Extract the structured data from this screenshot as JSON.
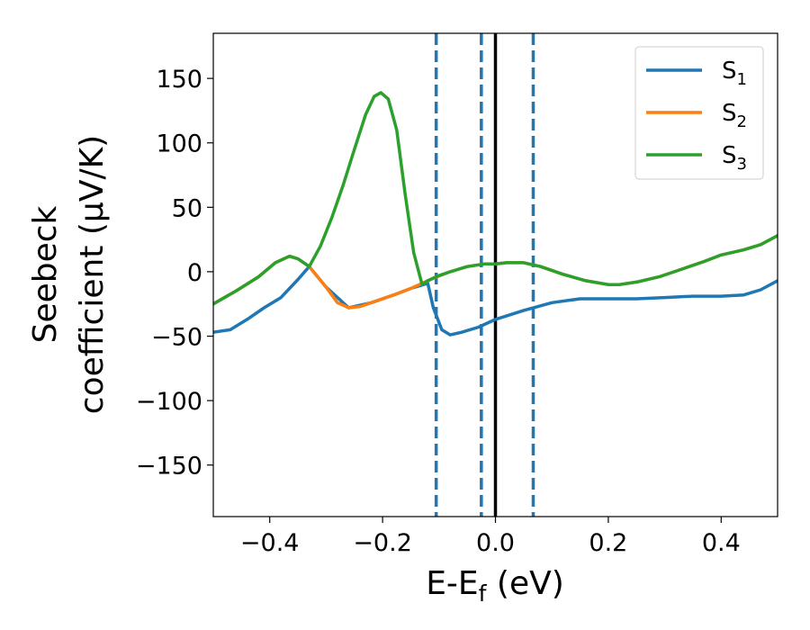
{
  "chart_data": {
    "type": "line",
    "xlabel": {
      "main": "E-E",
      "sub": "f",
      "unit": " (eV)"
    },
    "ylabel": {
      "line1": "Seebeck",
      "line2": "coefficient  (μV/K)"
    },
    "xlim": [
      -0.5,
      0.5
    ],
    "ylim": [
      -190,
      185
    ],
    "xticks": [
      {
        "v": -0.4,
        "label": "−0.4"
      },
      {
        "v": -0.2,
        "label": "−0.2"
      },
      {
        "v": 0.0,
        "label": "0.0"
      },
      {
        "v": 0.2,
        "label": "0.2"
      },
      {
        "v": 0.4,
        "label": "0.4"
      }
    ],
    "yticks": [
      {
        "v": 150,
        "label": "150"
      },
      {
        "v": 100,
        "label": "100"
      },
      {
        "v": 50,
        "label": "50"
      },
      {
        "v": 0,
        "label": "0"
      },
      {
        "v": -50,
        "label": "−50"
      },
      {
        "v": -100,
        "label": "−100"
      },
      {
        "v": -150,
        "label": "−150"
      }
    ],
    "grid": false,
    "legend_position": "top-right",
    "vlines": [
      {
        "x": -0.105,
        "style": "dashed",
        "color": "#1f77b4"
      },
      {
        "x": -0.025,
        "style": "dashed",
        "color": "#1f77b4"
      },
      {
        "x": 0.0,
        "style": "solid",
        "color": "#000000"
      },
      {
        "x": 0.067,
        "style": "dashed",
        "color": "#1f77b4"
      }
    ],
    "series": [
      {
        "name": "S",
        "sub": "1",
        "color": "#1f77b4",
        "points": [
          [
            -0.5,
            -47
          ],
          [
            -0.47,
            -45
          ],
          [
            -0.44,
            -37
          ],
          [
            -0.41,
            -28
          ],
          [
            -0.38,
            -20
          ],
          [
            -0.35,
            -6
          ],
          [
            -0.33,
            4
          ],
          [
            -0.3,
            -12
          ],
          [
            -0.26,
            -28
          ],
          [
            -0.22,
            -24
          ],
          [
            -0.18,
            -18
          ],
          [
            -0.15,
            -13
          ],
          [
            -0.12,
            -9
          ],
          [
            -0.11,
            -28
          ],
          [
            -0.095,
            -45
          ],
          [
            -0.08,
            -49
          ],
          [
            -0.06,
            -47
          ],
          [
            -0.03,
            -43
          ],
          [
            0.0,
            -37
          ],
          [
            0.05,
            -30
          ],
          [
            0.1,
            -24
          ],
          [
            0.15,
            -21
          ],
          [
            0.2,
            -21
          ],
          [
            0.25,
            -21
          ],
          [
            0.3,
            -20
          ],
          [
            0.35,
            -19
          ],
          [
            0.4,
            -19
          ],
          [
            0.44,
            -18
          ],
          [
            0.47,
            -14
          ],
          [
            0.5,
            -7
          ]
        ]
      },
      {
        "name": "S",
        "sub": "2",
        "color": "#ff7f0e",
        "points": [
          [
            -0.5,
            -25
          ],
          [
            -0.46,
            -15
          ],
          [
            -0.42,
            -4
          ],
          [
            -0.39,
            7
          ],
          [
            -0.365,
            12
          ],
          [
            -0.35,
            10
          ],
          [
            -0.33,
            4
          ],
          [
            -0.3,
            -12
          ],
          [
            -0.28,
            -24
          ],
          [
            -0.26,
            -28
          ],
          [
            -0.24,
            -27
          ],
          [
            -0.22,
            -24
          ],
          [
            -0.18,
            -18
          ],
          [
            -0.15,
            -13
          ],
          [
            -0.13,
            -9
          ],
          [
            -0.11,
            -5
          ],
          [
            -0.08,
            0
          ],
          [
            -0.05,
            4
          ],
          [
            -0.02,
            6
          ],
          [
            0.0,
            6
          ],
          [
            0.02,
            7
          ],
          [
            0.05,
            7
          ],
          [
            0.08,
            4
          ],
          [
            0.12,
            -2
          ],
          [
            0.16,
            -7
          ],
          [
            0.2,
            -10
          ],
          [
            0.22,
            -10
          ],
          [
            0.25,
            -8
          ],
          [
            0.29,
            -4
          ],
          [
            0.33,
            2
          ],
          [
            0.37,
            8
          ],
          [
            0.4,
            13
          ],
          [
            0.44,
            17
          ],
          [
            0.47,
            21
          ],
          [
            0.5,
            28
          ]
        ]
      },
      {
        "name": "S",
        "sub": "3",
        "color": "#2ca02c",
        "points": [
          [
            -0.5,
            -25
          ],
          [
            -0.46,
            -15
          ],
          [
            -0.42,
            -4
          ],
          [
            -0.39,
            7
          ],
          [
            -0.365,
            12
          ],
          [
            -0.35,
            10
          ],
          [
            -0.33,
            4
          ],
          [
            -0.31,
            20
          ],
          [
            -0.29,
            42
          ],
          [
            -0.27,
            67
          ],
          [
            -0.25,
            95
          ],
          [
            -0.23,
            122
          ],
          [
            -0.215,
            136
          ],
          [
            -0.203,
            139
          ],
          [
            -0.19,
            134
          ],
          [
            -0.175,
            110
          ],
          [
            -0.16,
            60
          ],
          [
            -0.145,
            15
          ],
          [
            -0.13,
            -10
          ],
          [
            -0.12,
            -7
          ],
          [
            -0.1,
            -3
          ],
          [
            -0.08,
            0
          ],
          [
            -0.05,
            4
          ],
          [
            -0.02,
            6
          ],
          [
            0.0,
            6
          ],
          [
            0.02,
            7
          ],
          [
            0.05,
            7
          ],
          [
            0.08,
            4
          ],
          [
            0.12,
            -2
          ],
          [
            0.16,
            -7
          ],
          [
            0.2,
            -10
          ],
          [
            0.22,
            -10
          ],
          [
            0.25,
            -8
          ],
          [
            0.29,
            -4
          ],
          [
            0.33,
            2
          ],
          [
            0.37,
            8
          ],
          [
            0.4,
            13
          ],
          [
            0.44,
            17
          ],
          [
            0.47,
            21
          ],
          [
            0.5,
            28
          ]
        ]
      }
    ]
  }
}
